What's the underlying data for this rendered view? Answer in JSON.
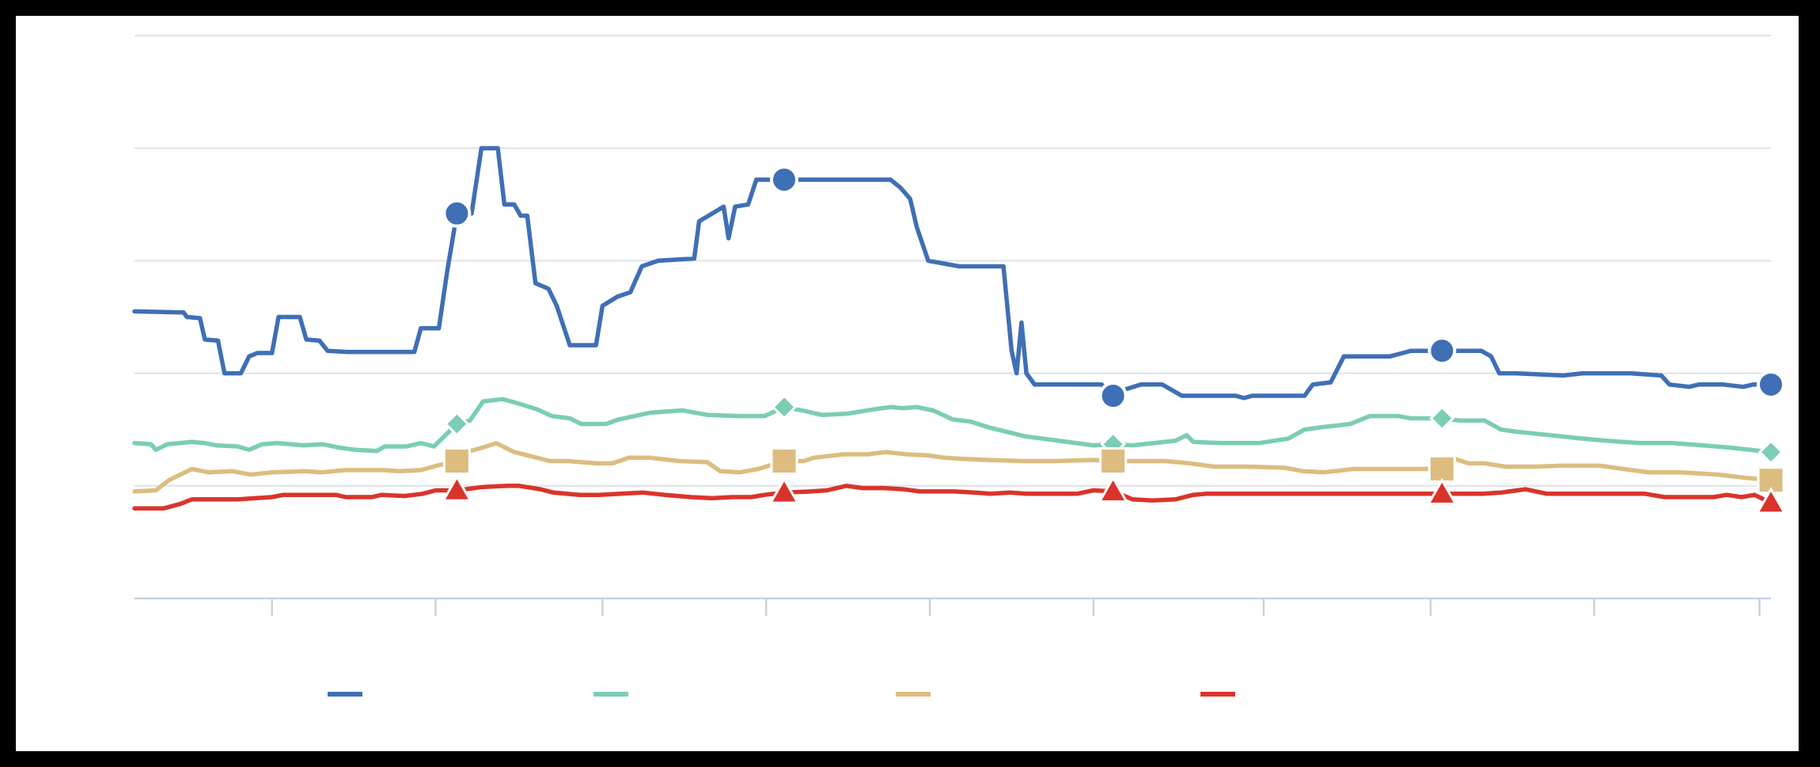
{
  "chart_data": {
    "type": "line",
    "title": "",
    "xlabel": "",
    "ylabel": "",
    "ylim": [
      0,
      5
    ],
    "xlim": [
      0,
      100
    ],
    "grid": true,
    "x_ticks": [
      8.4,
      18.4,
      28.6,
      38.6,
      48.6,
      58.6,
      69.0,
      79.2,
      89.2,
      99.3
    ],
    "legend_position": "bottom",
    "marker_x": [
      19.7,
      39.7,
      59.8,
      79.9,
      100
    ],
    "series": [
      {
        "color": "#3f6fb5",
        "marker": "circle",
        "points": [
          [
            0,
            2.55
          ],
          [
            3,
            2.54
          ],
          [
            3.2,
            2.5
          ],
          [
            4,
            2.49
          ],
          [
            4.3,
            2.3
          ],
          [
            5.1,
            2.29
          ],
          [
            5.5,
            2.0
          ],
          [
            6.5,
            2.0
          ],
          [
            7,
            2.15
          ],
          [
            7.5,
            2.18
          ],
          [
            8.4,
            2.18
          ],
          [
            8.8,
            2.5
          ],
          [
            10.1,
            2.5
          ],
          [
            10.5,
            2.3
          ],
          [
            11.3,
            2.29
          ],
          [
            11.8,
            2.2
          ],
          [
            13,
            2.19
          ],
          [
            17.1,
            2.19
          ],
          [
            17.5,
            2.4
          ],
          [
            18.6,
            2.4
          ],
          [
            19.1,
            2.9
          ],
          [
            19.7,
            3.42
          ],
          [
            20.6,
            3.42
          ],
          [
            21.2,
            4.0
          ],
          [
            22.2,
            4.0
          ],
          [
            22.6,
            3.5
          ],
          [
            23.2,
            3.5
          ],
          [
            23.6,
            3.4
          ],
          [
            24,
            3.4
          ],
          [
            24.5,
            2.8
          ],
          [
            25.3,
            2.75
          ],
          [
            25.8,
            2.6
          ],
          [
            26.6,
            2.25
          ],
          [
            28.2,
            2.25
          ],
          [
            28.6,
            2.6
          ],
          [
            29.5,
            2.68
          ],
          [
            30.3,
            2.72
          ],
          [
            31,
            2.95
          ],
          [
            32,
            3.0
          ],
          [
            34.2,
            3.02
          ],
          [
            34.5,
            3.35
          ],
          [
            36,
            3.48
          ],
          [
            36.3,
            3.2
          ],
          [
            36.7,
            3.48
          ],
          [
            37.5,
            3.5
          ],
          [
            38,
            3.72
          ],
          [
            39.7,
            3.72
          ],
          [
            46.2,
            3.72
          ],
          [
            46.8,
            3.65
          ],
          [
            47.4,
            3.55
          ],
          [
            47.8,
            3.3
          ],
          [
            48.5,
            3.0
          ],
          [
            50.4,
            2.95
          ],
          [
            51.1,
            2.95
          ],
          [
            53.1,
            2.95
          ],
          [
            53.6,
            2.2
          ],
          [
            53.9,
            2.0
          ],
          [
            54.2,
            2.45
          ],
          [
            54.5,
            2.0
          ],
          [
            55,
            1.9
          ],
          [
            56,
            1.9
          ],
          [
            59.1,
            1.9
          ],
          [
            59.8,
            1.8
          ],
          [
            60.4,
            1.85
          ],
          [
            61.5,
            1.9
          ],
          [
            62.8,
            1.9
          ],
          [
            64,
            1.8
          ],
          [
            67.3,
            1.8
          ],
          [
            67.8,
            1.78
          ],
          [
            68.3,
            1.8
          ],
          [
            71.5,
            1.8
          ],
          [
            72,
            1.9
          ],
          [
            73.1,
            1.92
          ],
          [
            73.9,
            2.15
          ],
          [
            74.5,
            2.15
          ],
          [
            76.7,
            2.15
          ],
          [
            77.5,
            2.18
          ],
          [
            78,
            2.2
          ],
          [
            79.9,
            2.2
          ],
          [
            81.2,
            2.2
          ],
          [
            82.3,
            2.2
          ],
          [
            82.9,
            2.15
          ],
          [
            83.4,
            2.0
          ],
          [
            84.4,
            2.0
          ],
          [
            87.3,
            1.98
          ],
          [
            88.5,
            2.0
          ],
          [
            91.4,
            2.0
          ],
          [
            93.3,
            1.98
          ],
          [
            93.8,
            1.9
          ],
          [
            95,
            1.88
          ],
          [
            95.6,
            1.9
          ],
          [
            97.1,
            1.9
          ],
          [
            98.3,
            1.88
          ],
          [
            98.9,
            1.9
          ],
          [
            100,
            1.9
          ]
        ]
      },
      {
        "color": "#7bcdb5",
        "marker": "diamond",
        "points": [
          [
            0,
            1.38
          ],
          [
            1,
            1.37
          ],
          [
            1.3,
            1.32
          ],
          [
            2,
            1.37
          ],
          [
            3.5,
            1.39
          ],
          [
            4.3,
            1.38
          ],
          [
            5,
            1.36
          ],
          [
            6.3,
            1.35
          ],
          [
            7,
            1.32
          ],
          [
            7.8,
            1.37
          ],
          [
            8.7,
            1.38
          ],
          [
            10.3,
            1.36
          ],
          [
            11.5,
            1.37
          ],
          [
            12.5,
            1.34
          ],
          [
            13.5,
            1.32
          ],
          [
            14.8,
            1.31
          ],
          [
            15.3,
            1.35
          ],
          [
            16.6,
            1.35
          ],
          [
            17.5,
            1.38
          ],
          [
            18.3,
            1.35
          ],
          [
            19.7,
            1.55
          ],
          [
            20.5,
            1.58
          ],
          [
            21.3,
            1.75
          ],
          [
            22.5,
            1.77
          ],
          [
            23.5,
            1.73
          ],
          [
            24.6,
            1.68
          ],
          [
            25.5,
            1.62
          ],
          [
            26.6,
            1.6
          ],
          [
            27.3,
            1.55
          ],
          [
            28.8,
            1.55
          ],
          [
            29.6,
            1.59
          ],
          [
            31.5,
            1.65
          ],
          [
            33.5,
            1.67
          ],
          [
            35,
            1.63
          ],
          [
            37,
            1.62
          ],
          [
            38.5,
            1.62
          ],
          [
            39.7,
            1.7
          ],
          [
            40.8,
            1.67
          ],
          [
            42,
            1.63
          ],
          [
            43.5,
            1.64
          ],
          [
            45.2,
            1.68
          ],
          [
            46.2,
            1.7
          ],
          [
            47,
            1.69
          ],
          [
            47.8,
            1.7
          ],
          [
            48.8,
            1.67
          ],
          [
            50,
            1.59
          ],
          [
            51.1,
            1.57
          ],
          [
            52.2,
            1.52
          ],
          [
            54.4,
            1.44
          ],
          [
            56.5,
            1.4
          ],
          [
            58.6,
            1.36
          ],
          [
            59.8,
            1.37
          ],
          [
            61,
            1.36
          ],
          [
            63.6,
            1.4
          ],
          [
            64.3,
            1.45
          ],
          [
            64.7,
            1.39
          ],
          [
            66.5,
            1.38
          ],
          [
            68.7,
            1.38
          ],
          [
            70.5,
            1.42
          ],
          [
            71.5,
            1.5
          ],
          [
            72.5,
            1.52
          ],
          [
            74.3,
            1.55
          ],
          [
            75.5,
            1.62
          ],
          [
            77.2,
            1.62
          ],
          [
            78,
            1.6
          ],
          [
            79.9,
            1.6
          ],
          [
            81,
            1.58
          ],
          [
            82.5,
            1.58
          ],
          [
            83.5,
            1.5
          ],
          [
            84.5,
            1.48
          ],
          [
            86.5,
            1.45
          ],
          [
            88.5,
            1.42
          ],
          [
            90,
            1.4
          ],
          [
            92,
            1.38
          ],
          [
            94,
            1.38
          ],
          [
            95.8,
            1.36
          ],
          [
            97.5,
            1.34
          ],
          [
            100,
            1.3
          ]
        ]
      },
      {
        "color": "#dcbd7f",
        "marker": "square",
        "points": [
          [
            0,
            0.95
          ],
          [
            1.3,
            0.96
          ],
          [
            2.1,
            1.05
          ],
          [
            3.5,
            1.15
          ],
          [
            4.5,
            1.12
          ],
          [
            6,
            1.13
          ],
          [
            7.1,
            1.1
          ],
          [
            8.4,
            1.12
          ],
          [
            10.3,
            1.13
          ],
          [
            11.5,
            1.12
          ],
          [
            12.9,
            1.14
          ],
          [
            15.1,
            1.14
          ],
          [
            16.2,
            1.13
          ],
          [
            17.5,
            1.14
          ],
          [
            18.5,
            1.18
          ],
          [
            19.7,
            1.22
          ],
          [
            20.3,
            1.3
          ],
          [
            21.5,
            1.35
          ],
          [
            22.1,
            1.38
          ],
          [
            23.2,
            1.3
          ],
          [
            24.6,
            1.25
          ],
          [
            25.4,
            1.22
          ],
          [
            26.5,
            1.22
          ],
          [
            28.2,
            1.2
          ],
          [
            29.2,
            1.2
          ],
          [
            30.2,
            1.25
          ],
          [
            31.5,
            1.25
          ],
          [
            33.3,
            1.22
          ],
          [
            35,
            1.21
          ],
          [
            35.8,
            1.13
          ],
          [
            37,
            1.12
          ],
          [
            38.1,
            1.15
          ],
          [
            39.7,
            1.22
          ],
          [
            40.9,
            1.22
          ],
          [
            41.5,
            1.25
          ],
          [
            43.3,
            1.28
          ],
          [
            44.8,
            1.28
          ],
          [
            45.9,
            1.3
          ],
          [
            47.2,
            1.28
          ],
          [
            48.5,
            1.27
          ],
          [
            49.5,
            1.25
          ],
          [
            50.6,
            1.24
          ],
          [
            52.2,
            1.23
          ],
          [
            54.3,
            1.22
          ],
          [
            56.3,
            1.22
          ],
          [
            58.5,
            1.23
          ],
          [
            59.8,
            1.22
          ],
          [
            61,
            1.22
          ],
          [
            63,
            1.22
          ],
          [
            64.5,
            1.2
          ],
          [
            66,
            1.17
          ],
          [
            68.3,
            1.17
          ],
          [
            70.3,
            1.16
          ],
          [
            71.4,
            1.13
          ],
          [
            72.7,
            1.12
          ],
          [
            74.5,
            1.15
          ],
          [
            76.6,
            1.15
          ],
          [
            78,
            1.15
          ],
          [
            79.9,
            1.15
          ],
          [
            80.5,
            1.25
          ],
          [
            81.5,
            1.2
          ],
          [
            82.5,
            1.2
          ],
          [
            83.8,
            1.17
          ],
          [
            85.5,
            1.17
          ],
          [
            87.3,
            1.18
          ],
          [
            89.5,
            1.18
          ],
          [
            91,
            1.15
          ],
          [
            92.5,
            1.12
          ],
          [
            94.5,
            1.12
          ],
          [
            96.8,
            1.1
          ],
          [
            98.5,
            1.07
          ],
          [
            100,
            1.05
          ]
        ]
      },
      {
        "color": "#d9342b",
        "marker": "triangle",
        "points": [
          [
            0,
            0.8
          ],
          [
            1.8,
            0.8
          ],
          [
            2.8,
            0.84
          ],
          [
            3.5,
            0.88
          ],
          [
            6.3,
            0.88
          ],
          [
            8.4,
            0.9
          ],
          [
            9.1,
            0.92
          ],
          [
            10.6,
            0.92
          ],
          [
            12.3,
            0.92
          ],
          [
            12.9,
            0.9
          ],
          [
            14.5,
            0.9
          ],
          [
            15.1,
            0.92
          ],
          [
            16.5,
            0.91
          ],
          [
            17.6,
            0.93
          ],
          [
            18.4,
            0.96
          ],
          [
            19.7,
            0.96
          ],
          [
            21.3,
            0.99
          ],
          [
            22.8,
            1.0
          ],
          [
            23.5,
            1.0
          ],
          [
            24.8,
            0.97
          ],
          [
            25.6,
            0.94
          ],
          [
            27.2,
            0.92
          ],
          [
            28.4,
            0.92
          ],
          [
            29.7,
            0.93
          ],
          [
            31.1,
            0.94
          ],
          [
            32.4,
            0.92
          ],
          [
            34,
            0.9
          ],
          [
            35.3,
            0.89
          ],
          [
            36.5,
            0.9
          ],
          [
            37.7,
            0.9
          ],
          [
            38.5,
            0.92
          ],
          [
            39.7,
            0.94
          ],
          [
            41.3,
            0.95
          ],
          [
            42.3,
            0.96
          ],
          [
            43.5,
            1.0
          ],
          [
            44.5,
            0.98
          ],
          [
            45.8,
            0.98
          ],
          [
            47,
            0.97
          ],
          [
            48,
            0.95
          ],
          [
            49.2,
            0.95
          ],
          [
            50.1,
            0.95
          ],
          [
            51.3,
            0.94
          ],
          [
            52.3,
            0.93
          ],
          [
            53.5,
            0.94
          ],
          [
            54.5,
            0.93
          ],
          [
            56.6,
            0.93
          ],
          [
            57.6,
            0.93
          ],
          [
            58.6,
            0.96
          ],
          [
            59.8,
            0.95
          ],
          [
            61,
            0.88
          ],
          [
            62.2,
            0.87
          ],
          [
            63.6,
            0.88
          ],
          [
            64.7,
            0.92
          ],
          [
            65.5,
            0.93
          ],
          [
            68.8,
            0.93
          ],
          [
            70.8,
            0.93
          ],
          [
            72.5,
            0.93
          ],
          [
            74.5,
            0.93
          ],
          [
            76.2,
            0.93
          ],
          [
            78,
            0.93
          ],
          [
            79.9,
            0.93
          ],
          [
            81.5,
            0.93
          ],
          [
            82.4,
            0.93
          ],
          [
            83.5,
            0.94
          ],
          [
            85,
            0.97
          ],
          [
            86.3,
            0.93
          ],
          [
            88.5,
            0.93
          ],
          [
            90.5,
            0.93
          ],
          [
            92.3,
            0.93
          ],
          [
            93.5,
            0.9
          ],
          [
            95,
            0.9
          ],
          [
            96.5,
            0.9
          ],
          [
            97.3,
            0.92
          ],
          [
            98.2,
            0.9
          ],
          [
            99,
            0.92
          ],
          [
            100,
            0.85
          ]
        ]
      }
    ]
  }
}
